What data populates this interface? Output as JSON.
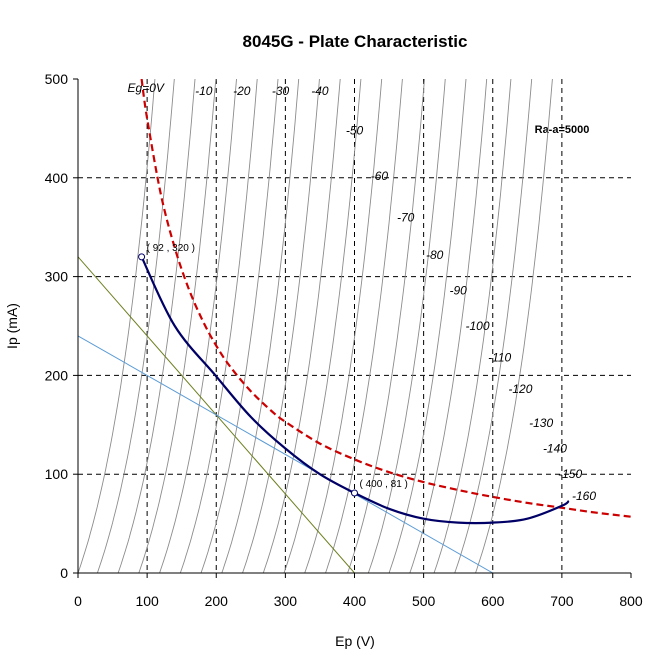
{
  "chart_data": {
    "type": "line",
    "title": "8045G - Plate Characteristic",
    "xlabel": "Ep (V)",
    "ylabel": "Ip (mA)",
    "xlim": [
      0,
      800
    ],
    "ylim": [
      0,
      500
    ],
    "x_ticks": [
      0,
      100,
      200,
      300,
      400,
      500,
      600,
      700,
      800
    ],
    "y_ticks": [
      0,
      100,
      200,
      300,
      400,
      500
    ],
    "grid": "dashed",
    "annotation": "Ra-a=5000",
    "grid_curves": [
      {
        "label": "Eg=0V",
        "start": 0
      },
      {
        "label": "-10",
        "start": 28
      },
      {
        "label": "-20",
        "start": 58
      },
      {
        "label": "-30",
        "start": 88
      },
      {
        "label": "-40",
        "start": 118
      },
      {
        "label": "-50",
        "start": 148
      },
      {
        "label": "-60",
        "start": 178
      },
      {
        "label": "-70",
        "start": 208
      },
      {
        "label": "-80",
        "start": 238
      },
      {
        "label": "-90",
        "start": 268
      },
      {
        "label": "-100",
        "start": 298
      },
      {
        "label": "-110",
        "start": 328
      },
      {
        "label": "-120",
        "start": 358
      },
      {
        "label": "-130",
        "start": 390
      },
      {
        "label": "-140",
        "start": 420
      },
      {
        "label": "-150",
        "start": 450
      },
      {
        "label": "-160",
        "start": 480
      },
      {
        "label": "",
        "start": 515
      },
      {
        "label": "",
        "start": 545
      },
      {
        "label": "",
        "start": 575
      }
    ],
    "curve_label_positions": [
      {
        "x": 98,
        "y": 487
      },
      {
        "x": 182,
        "y": 484
      },
      {
        "x": 237,
        "y": 484
      },
      {
        "x": 293,
        "y": 484
      },
      {
        "x": 350,
        "y": 484
      },
      {
        "x": 400,
        "y": 444
      },
      {
        "x": 436,
        "y": 398
      },
      {
        "x": 474,
        "y": 356
      },
      {
        "x": 516,
        "y": 318
      },
      {
        "x": 550,
        "y": 282
      },
      {
        "x": 578,
        "y": 246
      },
      {
        "x": 610,
        "y": 214
      },
      {
        "x": 640,
        "y": 182
      },
      {
        "x": 670,
        "y": 148
      },
      {
        "x": 690,
        "y": 122
      },
      {
        "x": 712,
        "y": 96
      },
      {
        "x": 732,
        "y": 74
      }
    ],
    "dissipation_curve": {
      "color": "#cc0000",
      "style": "dashed",
      "x": [
        92,
        100,
        120,
        140,
        160,
        180,
        200,
        220,
        250,
        280,
        300,
        350,
        400,
        450,
        500,
        550,
        600,
        650,
        700,
        750,
        800
      ],
      "y": [
        500,
        460,
        383,
        329,
        288,
        256,
        230,
        209,
        184,
        164,
        153,
        131,
        115,
        102,
        92,
        84,
        77,
        71,
        66,
        61,
        57
      ]
    },
    "load_line_5000": {
      "color": "#000066",
      "x": [
        92,
        140,
        200,
        250,
        300,
        350,
        400,
        450,
        500,
        550,
        600,
        650,
        700,
        710
      ],
      "y": [
        320,
        250,
        199,
        158,
        126,
        100,
        81,
        65,
        55,
        51,
        51,
        55,
        68,
        73
      ]
    },
    "load_line_a": {
      "color": "#6b7f1f",
      "x": [
        0,
        400
      ],
      "y": [
        320,
        0
      ]
    },
    "load_line_b": {
      "color": "#5b9bd5",
      "x": [
        0,
        600
      ],
      "y": [
        240,
        0
      ]
    },
    "points": [
      {
        "x": 92,
        "y": 320,
        "label": "( 92 , 320 )"
      },
      {
        "x": 400,
        "y": 81,
        "label": "( 400 , 81 )"
      }
    ]
  }
}
